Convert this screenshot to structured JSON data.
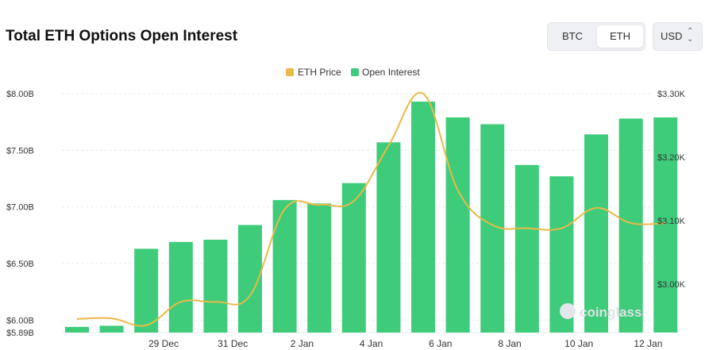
{
  "header": {
    "title": "Total ETH Options Open Interest",
    "asset_tabs": [
      {
        "label": "BTC",
        "selected": false
      },
      {
        "label": "ETH",
        "selected": true
      }
    ],
    "currency": {
      "label": "USD",
      "icon": "chevron-up-down-icon"
    }
  },
  "watermark": "coinglass",
  "colors": {
    "open_interest": "#3ecc7b",
    "eth_price": "#e9b949"
  },
  "chart_data": {
    "type": "bar",
    "title": "Total ETH Options Open Interest",
    "categories": [
      "27 Dec",
      "28 Dec",
      "29 Dec",
      "30 Dec",
      "31 Dec",
      "1 Jan",
      "2 Jan",
      "3 Jan",
      "4 Jan",
      "5 Jan",
      "6 Jan",
      "7 Jan",
      "8 Jan",
      "9 Jan",
      "10 Jan",
      "11 Jan",
      "12 Jan",
      "13 Jan"
    ],
    "x_tick_labels": [
      "29 Dec",
      "31 Dec",
      "2 Jan",
      "4 Jan",
      "6 Jan",
      "8 Jan",
      "10 Jan",
      "12 Jan"
    ],
    "legend": {
      "position": "top-center"
    },
    "grid": true,
    "series": [
      {
        "name": "Open Interest",
        "axis": "left",
        "type": "bar",
        "values": [
          5.94,
          5.95,
          6.63,
          6.69,
          6.71,
          6.84,
          7.06,
          7.03,
          7.21,
          7.57,
          7.93,
          7.79,
          7.73,
          7.37,
          7.27,
          7.64,
          7.78,
          7.79
        ]
      },
      {
        "name": "ETH Price",
        "axis": "right",
        "type": "line",
        "values": [
          2945,
          2946,
          2935,
          2972,
          2972,
          2982,
          3118,
          3125,
          3131,
          3218,
          3300,
          3148,
          3093,
          3088,
          3088,
          3120,
          3096,
          3096
        ]
      }
    ],
    "left_axis": {
      "ticks": [
        "$8.00B",
        "$7.50B",
        "$7.00B",
        "$6.50B",
        "$6.00B",
        "$5.89B"
      ],
      "tick_values": [
        8.0,
        7.5,
        7.0,
        6.5,
        6.0,
        5.89
      ],
      "range": [
        5.89,
        8.0
      ]
    },
    "right_axis": {
      "ticks": [
        "$3.30K",
        "$3.20K",
        "$3.10K",
        "$3.00K"
      ],
      "tick_values": [
        3300,
        3200,
        3100,
        3000
      ],
      "range": [
        2923.6,
        3300
      ]
    }
  }
}
